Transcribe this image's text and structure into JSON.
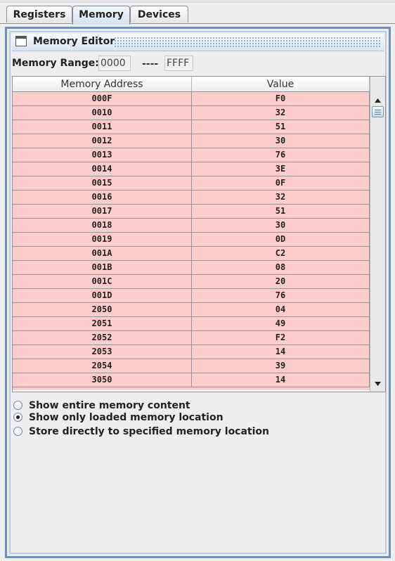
{
  "tabs": [
    {
      "label": "Registers",
      "active": false
    },
    {
      "label": "Memory",
      "active": true
    },
    {
      "label": "Devices",
      "active": false
    }
  ],
  "editor": {
    "title": "Memory Editor",
    "icon": "window-icon"
  },
  "range": {
    "label": "Memory Range:",
    "start": "0000",
    "separator": "----",
    "end": "FFFF"
  },
  "table": {
    "columns": [
      "Memory Address",
      "Value"
    ],
    "rows": [
      [
        "000F",
        "F0"
      ],
      [
        "0010",
        "32"
      ],
      [
        "0011",
        "51"
      ],
      [
        "0012",
        "30"
      ],
      [
        "0013",
        "76"
      ],
      [
        "0014",
        "3E"
      ],
      [
        "0015",
        "0F"
      ],
      [
        "0016",
        "32"
      ],
      [
        "0017",
        "51"
      ],
      [
        "0018",
        "30"
      ],
      [
        "0019",
        "0D"
      ],
      [
        "001A",
        "C2"
      ],
      [
        "001B",
        "08"
      ],
      [
        "001C",
        "20"
      ],
      [
        "001D",
        "76"
      ],
      [
        "2050",
        "04"
      ],
      [
        "2051",
        "49"
      ],
      [
        "2052",
        "F2"
      ],
      [
        "2053",
        "14"
      ],
      [
        "2054",
        "39"
      ],
      [
        "3050",
        "14"
      ]
    ],
    "row_color": "#ffcccc"
  },
  "options": [
    {
      "label": "Show entire memory content",
      "selected": false
    },
    {
      "label": "Show only loaded memory location",
      "selected": true
    },
    {
      "label": "Store directly to specified memory location",
      "selected": false
    }
  ]
}
